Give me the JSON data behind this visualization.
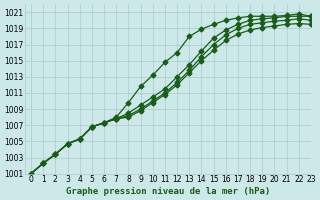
{
  "title": "Graphe pression niveau de la mer (hPa)",
  "bg_color": "#cce8e8",
  "grid_color": "#aacccc",
  "line_color": "#1a5c1a",
  "xlim": [
    -0.5,
    23
  ],
  "ylim": [
    1001,
    1022
  ],
  "xticks": [
    0,
    1,
    2,
    3,
    4,
    5,
    6,
    7,
    8,
    9,
    10,
    11,
    12,
    13,
    14,
    15,
    16,
    17,
    18,
    19,
    20,
    21,
    22,
    23
  ],
  "yticks": [
    1001,
    1003,
    1005,
    1007,
    1009,
    1011,
    1013,
    1015,
    1017,
    1019,
    1021
  ],
  "series": [
    [
      1001.0,
      1002.3,
      1003.4,
      1004.7,
      1005.3,
      1006.8,
      1007.3,
      1008.0,
      1009.8,
      1011.8,
      1013.2,
      1014.8,
      1016.0,
      1018.0,
      1018.9,
      1019.5,
      1020.0,
      1020.3,
      1020.5,
      1020.5,
      1020.5,
      1020.6,
      1020.8,
      1020.5
    ],
    [
      1001.0,
      1002.3,
      1003.4,
      1004.7,
      1005.3,
      1006.8,
      1007.3,
      1007.8,
      1008.5,
      1009.5,
      1010.5,
      1011.5,
      1013.0,
      1014.5,
      1016.2,
      1017.8,
      1018.8,
      1019.5,
      1020.0,
      1020.2,
      1020.3,
      1020.5,
      1020.5,
      1020.5
    ],
    [
      1001.0,
      1002.3,
      1003.4,
      1004.7,
      1005.3,
      1006.8,
      1007.3,
      1007.8,
      1008.2,
      1009.0,
      1010.0,
      1011.0,
      1012.3,
      1013.8,
      1015.5,
      1017.0,
      1018.2,
      1019.0,
      1019.5,
      1019.7,
      1019.9,
      1020.0,
      1020.2,
      1020.0
    ],
    [
      1001.0,
      1002.3,
      1003.4,
      1004.7,
      1005.3,
      1006.8,
      1007.3,
      1007.8,
      1008.0,
      1008.8,
      1009.8,
      1010.8,
      1012.0,
      1013.5,
      1015.0,
      1016.3,
      1017.5,
      1018.3,
      1018.8,
      1019.1,
      1019.3,
      1019.5,
      1019.6,
      1019.5
    ]
  ],
  "marker": "D",
  "marker_size": 2.5,
  "linewidth": 0.9,
  "title_fontsize": 6.5,
  "tick_fontsize": 5.5
}
